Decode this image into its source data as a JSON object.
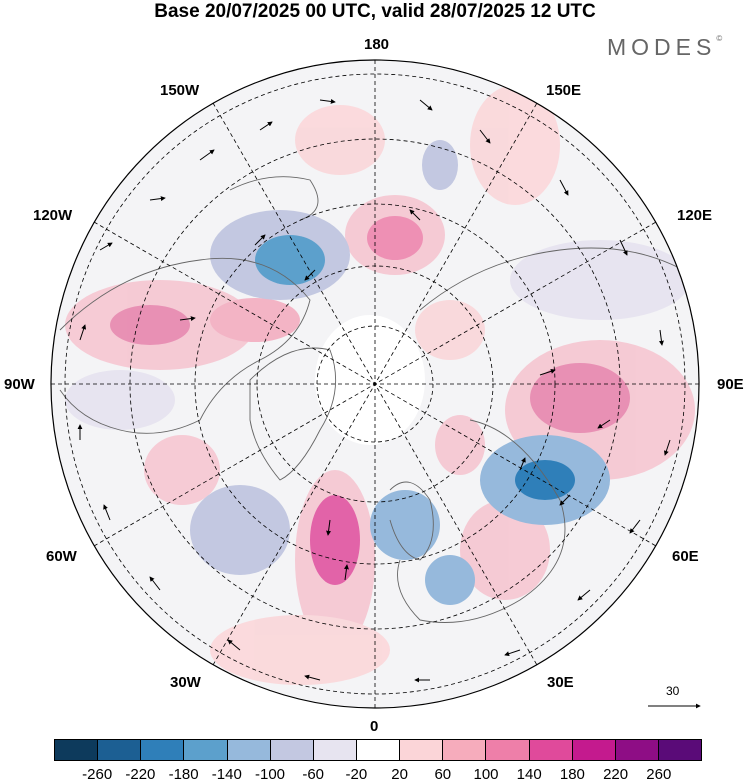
{
  "title": "Base 20/07/2025 00 UTC, valid 28/07/2025 12 UTC",
  "brand": {
    "text": "MODES",
    "mark": "©"
  },
  "longitude_labels": {
    "top": "180",
    "bottom": "0",
    "left": "90W",
    "right": "90E",
    "upper_left_1": "150W",
    "upper_left_2": "120W",
    "upper_right_1": "150E",
    "upper_right_2": "120E",
    "lower_left_1": "60W",
    "lower_left_2": "30W",
    "lower_right_1": "60E",
    "lower_right_2": "30E"
  },
  "reference_vector": {
    "value": "30",
    "icon": "arrow-right-icon"
  },
  "colorbar": {
    "colors": [
      "#0d3a5c",
      "#1c5f93",
      "#2f7fb9",
      "#5ca0cc",
      "#96b9dc",
      "#c3c8e1",
      "#e7e4f0",
      "#ffffff",
      "#fbd5d8",
      "#f6acbc",
      "#ee7fa9",
      "#e04a9b",
      "#c41a8e",
      "#8e0d85",
      "#5a0b78"
    ],
    "tick_labels": [
      "-260",
      "-220",
      "-180",
      "-140",
      "-100",
      "-60",
      "-20",
      "20",
      "60",
      "100",
      "140",
      "180",
      "220",
      "260"
    ]
  }
}
